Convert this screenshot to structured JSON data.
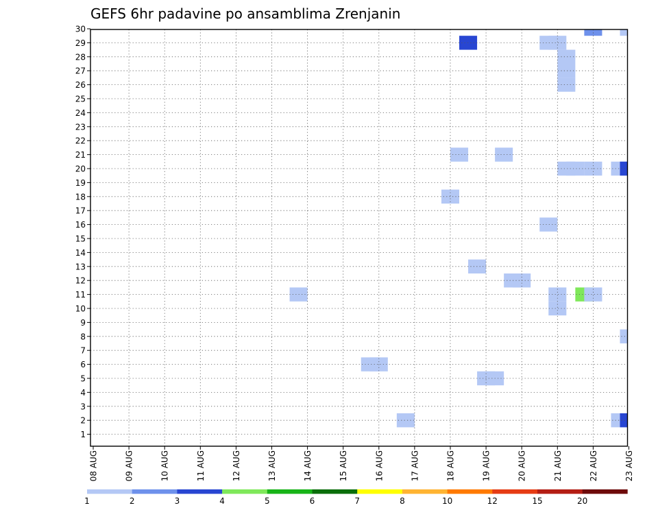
{
  "chart_data": {
    "type": "heatmap",
    "title": "GEFS 6hr padavine po ansamblima Zrenjanin",
    "xlabel": "",
    "ylabel": "",
    "x_ticks": [
      "08 AUG",
      "09 AUG",
      "10 AUG",
      "11 AUG",
      "12 AUG",
      "13 AUG",
      "14 AUG",
      "15 AUG",
      "16 AUG",
      "17 AUG",
      "18 AUG",
      "19 AUG",
      "20 AUG",
      "21 AUG",
      "22 AUG",
      "23 AUG"
    ],
    "y_ticks": [
      "1",
      "2",
      "3",
      "4",
      "5",
      "6",
      "7",
      "8",
      "9",
      "10",
      "11",
      "12",
      "13",
      "14",
      "15",
      "16",
      "17",
      "18",
      "19",
      "20",
      "21",
      "22",
      "23",
      "24",
      "25",
      "26",
      "27",
      "28",
      "29",
      "30"
    ],
    "xlim_days": [
      0,
      15
    ],
    "ylim_members": [
      0,
      30
    ],
    "grid": true,
    "colorbar": {
      "placement": "bottom",
      "tick_labels": [
        "1",
        "2",
        "3",
        "4",
        "5",
        "6",
        "7",
        "8",
        "10",
        "12",
        "15",
        "20"
      ],
      "colors": [
        "#b4c8f5",
        "#6e91eb",
        "#2846d2",
        "#7fe85a",
        "#18b418",
        "#0a6e0a",
        "#ffff00",
        "#ffb432",
        "#ff7a00",
        "#e63c14",
        "#b41e14",
        "#6e0a0a"
      ]
    },
    "cells": [
      {
        "member": 29,
        "day": 10.5,
        "color": "#2846d2"
      },
      {
        "member": 30,
        "day": 14.0,
        "color": "#6e91eb"
      },
      {
        "member": 30,
        "day": 15.0,
        "color": "#b4c8f5"
      },
      {
        "member": 29,
        "day": 12.75,
        "color": "#b4c8f5"
      },
      {
        "member": 29,
        "day": 13.0,
        "color": "#b4c8f5"
      },
      {
        "member": 28,
        "day": 13.25,
        "color": "#b4c8f5"
      },
      {
        "member": 27,
        "day": 13.25,
        "color": "#b4c8f5"
      },
      {
        "member": 26,
        "day": 13.25,
        "color": "#b4c8f5"
      },
      {
        "member": 21,
        "day": 10.25,
        "color": "#b4c8f5"
      },
      {
        "member": 21,
        "day": 11.5,
        "color": "#b4c8f5"
      },
      {
        "member": 20,
        "day": 13.25,
        "color": "#b4c8f5"
      },
      {
        "member": 20,
        "day": 13.5,
        "color": "#b4c8f5"
      },
      {
        "member": 20,
        "day": 14.0,
        "color": "#b4c8f5"
      },
      {
        "member": 20,
        "day": 14.75,
        "color": "#b4c8f5"
      },
      {
        "member": 20,
        "day": 15.0,
        "color": "#2846d2"
      },
      {
        "member": 18,
        "day": 10.0,
        "color": "#b4c8f5"
      },
      {
        "member": 16,
        "day": 12.75,
        "color": "#b4c8f5"
      },
      {
        "member": 13,
        "day": 10.75,
        "color": "#b4c8f5"
      },
      {
        "member": 12,
        "day": 11.75,
        "color": "#b4c8f5"
      },
      {
        "member": 12,
        "day": 12.0,
        "color": "#b4c8f5"
      },
      {
        "member": 11,
        "day": 5.75,
        "color": "#b4c8f5"
      },
      {
        "member": 11,
        "day": 13.0,
        "color": "#b4c8f5"
      },
      {
        "member": 10,
        "day": 13.0,
        "color": "#b4c8f5"
      },
      {
        "member": 11,
        "day": 13.75,
        "color": "#7fe85a"
      },
      {
        "member": 11,
        "day": 14.0,
        "color": "#b4c8f5"
      },
      {
        "member": 8,
        "day": 15.0,
        "color": "#b4c8f5"
      },
      {
        "member": 6,
        "day": 7.75,
        "color": "#b4c8f5"
      },
      {
        "member": 6,
        "day": 8.0,
        "color": "#b4c8f5"
      },
      {
        "member": 5,
        "day": 11.0,
        "color": "#b4c8f5"
      },
      {
        "member": 5,
        "day": 11.25,
        "color": "#b4c8f5"
      },
      {
        "member": 2,
        "day": 8.75,
        "color": "#b4c8f5"
      },
      {
        "member": 2,
        "day": 14.75,
        "color": "#b4c8f5"
      },
      {
        "member": 2,
        "day": 15.0,
        "color": "#2846d2"
      }
    ]
  }
}
